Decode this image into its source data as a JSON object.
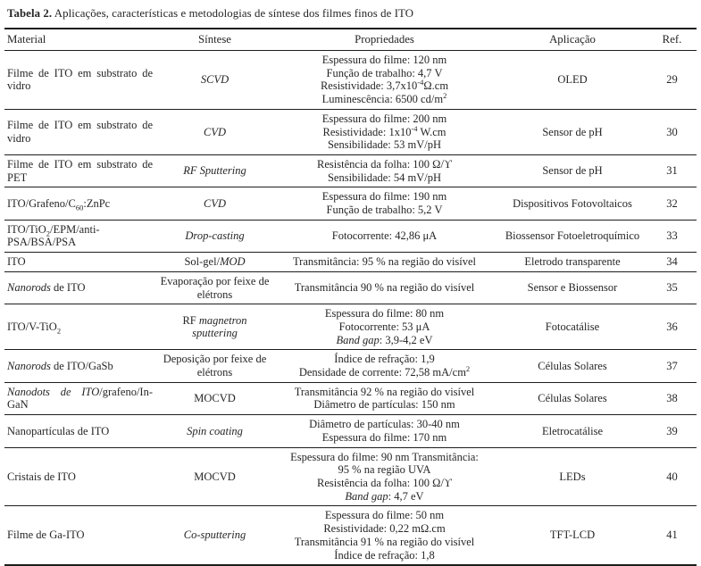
{
  "caption": {
    "label": "Tabela 2.",
    "text": " Aplicações, características e metodologias de síntese dos filmes finos de ITO"
  },
  "table": {
    "headers": [
      "Material",
      "Síntese",
      "Propriedades",
      "Aplicação",
      "Ref."
    ],
    "rows": [
      {
        "material": [
          "Filme de ITO em substrato de vidro"
        ],
        "synthesis": [
          [
            {
              "t": "SCVD",
              "s": "i"
            }
          ]
        ],
        "properties": [
          "Espessura do filme: 120 nm",
          "Função de trabalho: 4,7 V",
          [
            "Resistividade: 3,7x10",
            {
              "t": "-4",
              "s": "sup"
            },
            "Ω.cm"
          ],
          [
            "Luminescência: 6500 cd/m",
            {
              "t": "2",
              "s": "sup"
            }
          ]
        ],
        "application": [
          "OLED"
        ],
        "ref": [
          "29"
        ]
      },
      {
        "material": [
          "Filme de ITO em substrato de vidro"
        ],
        "synthesis": [
          [
            {
              "t": "CVD",
              "s": "i"
            }
          ]
        ],
        "properties": [
          "Espessura do filme: 200 nm",
          [
            "Resistividade: 1x10",
            {
              "t": "-4",
              "s": "sup"
            },
            " W.cm"
          ],
          "Sensibilidade: 53 mV/pH"
        ],
        "application": [
          "Sensor de pH"
        ],
        "ref": [
          "30"
        ]
      },
      {
        "material": [
          "Filme de ITO em substrato de PET"
        ],
        "synthesis": [
          [
            {
              "t": "RF Sputtering",
              "s": "i"
            }
          ]
        ],
        "properties": [
          "Resistência da folha: 100 Ω/ϒ",
          "Sensibilidade: 54 mV/pH"
        ],
        "application": [
          "Sensor de pH"
        ],
        "ref": [
          "31"
        ]
      },
      {
        "material": [
          [
            "ITO/Grafeno/C",
            {
              "t": "60",
              "s": "sub"
            },
            ":ZnPc"
          ]
        ],
        "synthesis": [
          [
            {
              "t": "CVD",
              "s": "i"
            }
          ]
        ],
        "properties": [
          "Espessura do filme: 190 nm",
          "Função de trabalho: 5,2 V"
        ],
        "application": [
          "Dispositivos Fotovoltaicos"
        ],
        "ref": [
          "32"
        ]
      },
      {
        "material": [
          [
            "ITO/TiO",
            {
              "t": "2",
              "s": "sub"
            },
            "/EPM/anti-PSA/BSA/PSA"
          ]
        ],
        "synthesis": [
          [
            {
              "t": "Drop-casting",
              "s": "i"
            }
          ]
        ],
        "properties": [
          "Fotocorrente: 42,86 μA"
        ],
        "application": [
          "Biossensor Fotoeletroquímico"
        ],
        "ref": [
          "33"
        ]
      },
      {
        "material": [
          "ITO"
        ],
        "synthesis": [
          [
            "Sol-gel/",
            {
              "t": "MOD",
              "s": "i"
            }
          ]
        ],
        "properties": [
          "Transmitância: 95 % na região do visível"
        ],
        "application": [
          "Eletrodo transparente"
        ],
        "ref": [
          "34"
        ]
      },
      {
        "material": [
          [
            {
              "t": "Nanorods",
              "s": "i"
            },
            " de ITO"
          ]
        ],
        "synthesis": [
          "Evaporação por feixe de",
          "elétrons"
        ],
        "properties": [
          "Transmitância 90 % na região do visível"
        ],
        "application": [
          "Sensor e Biossensor"
        ],
        "ref": [
          "35"
        ]
      },
      {
        "material": [
          [
            "ITO/V-TiO",
            {
              "t": "2",
              "s": "sub"
            }
          ]
        ],
        "synthesis": [
          [
            "RF ",
            {
              "t": "magnetron sputtering",
              "s": "i"
            }
          ]
        ],
        "properties": [
          "Espessura do filme: 80 nm",
          "Fotocorrente: 53 μA",
          [
            {
              "t": "Band gap",
              "s": "i"
            },
            ": 3,9-4,2 eV"
          ]
        ],
        "application": [
          "Fotocatálise"
        ],
        "ref": [
          "36"
        ]
      },
      {
        "material": [
          [
            {
              "t": "Nanorods",
              "s": "i"
            },
            " de ITO/GaSb"
          ]
        ],
        "synthesis": [
          "Deposição por feixe de",
          "elétrons"
        ],
        "properties": [
          "Índice de refração: 1,9",
          [
            "Densidade de corrente: 72,58 mA/cm",
            {
              "t": "2",
              "s": "sup"
            }
          ]
        ],
        "application": [
          "Células Solares"
        ],
        "ref": [
          "37"
        ]
      },
      {
        "material": [
          [
            {
              "t": "Nanodots de ITO",
              "s": "i"
            },
            "/grafeno/In-GaN"
          ]
        ],
        "synthesis": [
          "MOCVD"
        ],
        "properties": [
          "Transmitância 92 % na região do visível",
          "Diâmetro de partículas: 150 nm"
        ],
        "application": [
          "Células Solares"
        ],
        "ref": [
          "38"
        ]
      },
      {
        "material": [
          "Nanopartículas de ITO"
        ],
        "synthesis": [
          [
            {
              "t": "Spin coating",
              "s": "i"
            }
          ]
        ],
        "properties": [
          "Diâmetro de partículas: 30-40 nm",
          "Espessura do filme: 170 nm"
        ],
        "application": [
          "Eletrocatálise"
        ],
        "ref": [
          "39"
        ]
      },
      {
        "material": [
          "Cristais de ITO"
        ],
        "synthesis": [
          "MOCVD"
        ],
        "properties": [
          "Espessura do filme: 90 nm Transmitância:",
          "95 % na região UVA",
          "Resistência da folha: 100 Ω/ϒ",
          [
            {
              "t": "Band gap",
              "s": "i"
            },
            ": 4,7 eV"
          ]
        ],
        "application": [
          "LEDs"
        ],
        "ref": [
          "40"
        ]
      },
      {
        "material": [
          "Filme de Ga-ITO"
        ],
        "synthesis": [
          [
            {
              "t": "Co-sputtering",
              "s": "i"
            }
          ]
        ],
        "properties": [
          "Espessura do filme: 50 nm",
          "Resistividade: 0,22 mΩ.cm",
          "Transmitância 91 % na região do visível",
          "Índice de refração: 1,8"
        ],
        "application": [
          "TFT-LCD"
        ],
        "ref": [
          "41"
        ]
      }
    ]
  }
}
